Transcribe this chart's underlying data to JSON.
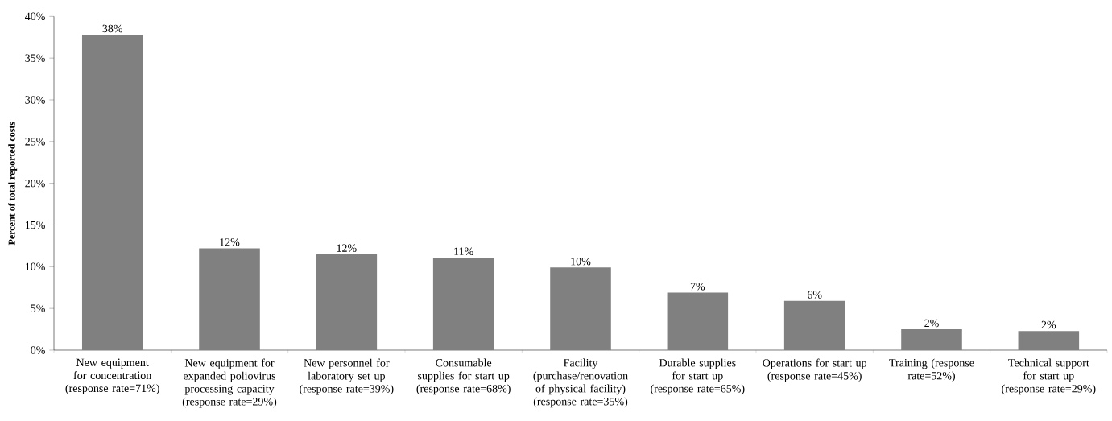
{
  "chart_data": {
    "type": "bar",
    "ylabel": "Percent of total reported costs",
    "categories": [
      "New equipment for concentration (response rate=71%)",
      "New equipment for expanded poliovirus processing capacity (response rate=29%)",
      "New personnel for laboratory set up (response rate=39%)",
      "Consumable supplies for start up (response rate=68%)",
      "Facility (purchase/renovation of physical facility) (response rate=35%)",
      "Durable supplies for start up (response rate=65%)",
      "Operations for start up (response rate=45%)",
      "Training (response rate=52%)",
      "Technical support for start up (response rate=29%)"
    ],
    "values": [
      37.8,
      12.2,
      11.5,
      11.1,
      9.9,
      6.9,
      5.9,
      2.5,
      2.3
    ],
    "value_labels": [
      "38%",
      "12%",
      "12%",
      "11%",
      "10%",
      "7%",
      "6%",
      "2%",
      "2%"
    ],
    "color": "#808080",
    "ylim": [
      0,
      40
    ],
    "yticks": [
      {
        "value": 0,
        "label": "0%"
      },
      {
        "value": 5,
        "label": "5%"
      },
      {
        "value": 10,
        "label": "10%"
      },
      {
        "value": 15,
        "label": "15%"
      },
      {
        "value": 20,
        "label": "20%"
      },
      {
        "value": 25,
        "label": "25%"
      },
      {
        "value": 30,
        "label": "30%"
      },
      {
        "value": 35,
        "label": "35%"
      },
      {
        "value": 40,
        "label": "40%"
      }
    ]
  }
}
